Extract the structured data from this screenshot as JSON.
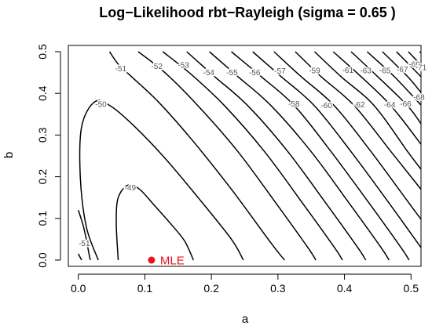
{
  "chart_data": {
    "type": "contour",
    "title": "Log−Likelihood rbt−Rayleigh (sigma = 0.65 )",
    "xlabel": "a",
    "ylabel": "b",
    "xlim": [
      -0.015,
      0.515
    ],
    "ylim": [
      -0.015,
      0.515
    ],
    "x_ticks": [
      0.0,
      0.1,
      0.2,
      0.3,
      0.4,
      0.5
    ],
    "x_tick_labels": [
      "0.0",
      "0.1",
      "0.2",
      "0.3",
      "0.4",
      "0.5"
    ],
    "y_ticks": [
      0.0,
      0.1,
      0.2,
      0.3,
      0.4,
      0.5
    ],
    "y_tick_labels": [
      "0.0",
      "0.1",
      "0.2",
      "0.3",
      "0.4",
      "0.5"
    ],
    "grid": false,
    "line_color": "#000000",
    "label_color": "#555555",
    "contours": [
      {
        "level": -49,
        "label": "-49",
        "label_pos": [
          0.078,
          0.174
        ],
        "points": [
          [
            0.06,
            0.0
          ],
          [
            0.057,
            0.09
          ],
          [
            0.06,
            0.15
          ],
          [
            0.075,
            0.18
          ],
          [
            0.092,
            0.17
          ],
          [
            0.115,
            0.13
          ],
          [
            0.14,
            0.085
          ],
          [
            0.16,
            0.045
          ],
          [
            0.173,
            0.0
          ]
        ]
      },
      {
        "level": -50,
        "label": "-50",
        "label_pos": [
          0.034,
          0.374
        ],
        "points": [
          [
            0.03,
            0.0
          ],
          [
            0.012,
            0.08
          ],
          [
            0.003,
            0.2
          ],
          [
            0.005,
            0.32
          ],
          [
            0.025,
            0.38
          ],
          [
            0.05,
            0.368
          ],
          [
            0.085,
            0.32
          ],
          [
            0.13,
            0.245
          ],
          [
            0.18,
            0.15
          ],
          [
            0.23,
            0.05
          ],
          [
            0.248,
            0.0
          ]
        ]
      },
      {
        "level": -51,
        "label": "-51",
        "label_pos": [
          0.064,
          0.46
        ],
        "points": [
          [
            0.047,
            0.5
          ],
          [
            0.06,
            0.47
          ],
          [
            0.08,
            0.44
          ],
          [
            0.12,
            0.38
          ],
          [
            0.17,
            0.29
          ],
          [
            0.23,
            0.17
          ],
          [
            0.29,
            0.04
          ],
          [
            0.31,
            0.0
          ]
        ]
      },
      {
        "level": -51,
        "label": "-51",
        "label_pos": [
          0.009,
          0.04
        ],
        "points": [
          [
            0.0,
            0.12
          ],
          [
            0.007,
            0.085
          ],
          [
            0.012,
            0.05
          ],
          [
            0.016,
            0.015
          ],
          [
            0.018,
            0.0
          ]
        ]
      },
      {
        "level": -51,
        "label": "",
        "label_pos": null,
        "points": [
          [
            0.0,
            0.015
          ],
          [
            0.005,
            0.0
          ]
        ]
      },
      {
        "level": -52,
        "label": "-52",
        "label_pos": [
          0.118,
          0.465
        ],
        "points": [
          [
            0.09,
            0.5
          ],
          [
            0.13,
            0.45
          ],
          [
            0.18,
            0.37
          ],
          [
            0.24,
            0.26
          ],
          [
            0.3,
            0.13
          ],
          [
            0.345,
            0.03
          ],
          [
            0.357,
            0.0
          ]
        ]
      },
      {
        "level": -53,
        "label": "-53",
        "label_pos": [
          0.158,
          0.468
        ],
        "points": [
          [
            0.127,
            0.5
          ],
          [
            0.17,
            0.445
          ],
          [
            0.22,
            0.37
          ],
          [
            0.28,
            0.26
          ],
          [
            0.34,
            0.13
          ],
          [
            0.385,
            0.03
          ],
          [
            0.397,
            0.0
          ]
        ]
      },
      {
        "level": -54,
        "label": "-54",
        "label_pos": [
          0.196,
          0.45
        ],
        "points": [
          [
            0.163,
            0.5
          ],
          [
            0.205,
            0.44
          ],
          [
            0.255,
            0.37
          ],
          [
            0.315,
            0.26
          ],
          [
            0.375,
            0.13
          ],
          [
            0.42,
            0.03
          ],
          [
            0.432,
            0.0
          ]
        ]
      },
      {
        "level": -55,
        "label": "-55",
        "label_pos": [
          0.231,
          0.45
        ],
        "points": [
          [
            0.197,
            0.5
          ],
          [
            0.24,
            0.44
          ],
          [
            0.29,
            0.37
          ],
          [
            0.35,
            0.26
          ],
          [
            0.41,
            0.13
          ],
          [
            0.455,
            0.03
          ],
          [
            0.467,
            0.0
          ]
        ]
      },
      {
        "level": -56,
        "label": "-56",
        "label_pos": [
          0.265,
          0.45
        ],
        "points": [
          [
            0.23,
            0.5
          ],
          [
            0.275,
            0.44
          ],
          [
            0.325,
            0.37
          ],
          [
            0.38,
            0.26
          ],
          [
            0.44,
            0.13
          ],
          [
            0.485,
            0.03
          ],
          [
            0.497,
            0.0
          ]
        ]
      },
      {
        "level": -57,
        "label": "-57",
        "label_pos": [
          0.303,
          0.454
        ],
        "points": [
          [
            0.262,
            0.5
          ],
          [
            0.305,
            0.44
          ],
          [
            0.355,
            0.37
          ],
          [
            0.41,
            0.26
          ],
          [
            0.47,
            0.13
          ],
          [
            0.515,
            0.03
          ]
        ]
      },
      {
        "level": -58,
        "label": "-58",
        "label_pos": [
          0.324,
          0.375
        ],
        "points": [
          [
            0.294,
            0.5
          ],
          [
            0.335,
            0.44
          ],
          [
            0.385,
            0.37
          ],
          [
            0.44,
            0.26
          ],
          [
            0.5,
            0.13
          ],
          [
            0.515,
            0.098
          ]
        ]
      },
      {
        "level": -59,
        "label": "-59",
        "label_pos": [
          0.355,
          0.455
        ],
        "points": [
          [
            0.326,
            0.5
          ],
          [
            0.365,
            0.44
          ],
          [
            0.415,
            0.37
          ],
          [
            0.47,
            0.26
          ],
          [
            0.515,
            0.17
          ]
        ]
      },
      {
        "level": -60,
        "label": "-60",
        "label_pos": [
          0.373,
          0.371
        ],
        "points": [
          [
            0.355,
            0.5
          ],
          [
            0.395,
            0.44
          ],
          [
            0.445,
            0.37
          ],
          [
            0.495,
            0.26
          ],
          [
            0.515,
            0.218
          ]
        ]
      },
      {
        "level": -61,
        "label": "-61",
        "label_pos": [
          0.405,
          0.456
        ],
        "points": [
          [
            0.383,
            0.5
          ],
          [
            0.425,
            0.44
          ],
          [
            0.47,
            0.37
          ],
          [
            0.515,
            0.278
          ]
        ]
      },
      {
        "level": -62,
        "label": "-62",
        "label_pos": [
          0.422,
          0.373
        ],
        "points": [
          [
            0.41,
            0.5
          ],
          [
            0.45,
            0.44
          ],
          [
            0.495,
            0.37
          ],
          [
            0.515,
            0.327
          ]
        ]
      },
      {
        "level": -63,
        "label": "-63",
        "label_pos": [
          0.432,
          0.455
        ],
        "points": [
          [
            0.434,
            0.5
          ],
          [
            0.475,
            0.44
          ],
          [
            0.515,
            0.372
          ]
        ]
      },
      {
        "level": -64,
        "label": "-64",
        "label_pos": [
          0.468,
          0.373
        ],
        "points": [
          [
            0.457,
            0.5
          ],
          [
            0.495,
            0.44
          ],
          [
            0.515,
            0.402
          ]
        ]
      },
      {
        "level": -65,
        "label": "-65",
        "label_pos": [
          0.461,
          0.455
        ],
        "points": [
          [
            0.478,
            0.5
          ],
          [
            0.515,
            0.44
          ]
        ]
      },
      {
        "level": -66,
        "label": "-66",
        "label_pos": [
          0.492,
          0.375
        ],
        "points": [
          [
            0.496,
            0.5
          ],
          [
            0.515,
            0.468
          ]
        ]
      },
      {
        "level": -67,
        "label": "-67",
        "label_pos": [
          0.487,
          0.458
        ],
        "points": [
          [
            0.513,
            0.5
          ],
          [
            0.515,
            0.497
          ]
        ]
      },
      {
        "level": -68,
        "label": "-68",
        "label_pos": [
          0.512,
          0.391
        ],
        "points": []
      },
      {
        "level": -69,
        "label": "-69",
        "label_pos": [
          0.505,
          0.47
        ],
        "points": []
      },
      {
        "level": -71,
        "label": "-71",
        "label_pos": [
          0.515,
          0.462
        ],
        "points": []
      }
    ],
    "points": [
      {
        "name": "MLE",
        "x": 0.11,
        "y": 0.0,
        "color": "#e8141c"
      }
    ]
  }
}
